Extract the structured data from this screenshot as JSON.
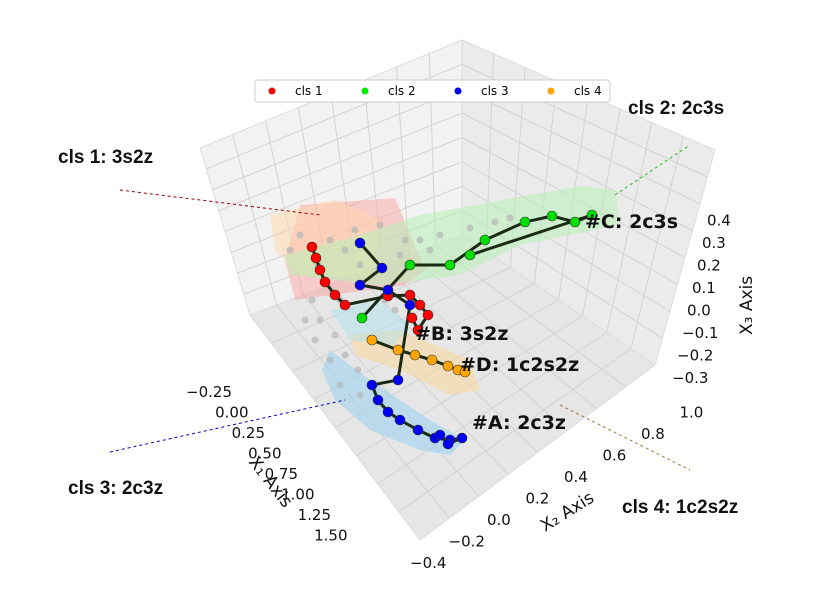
{
  "chart_data": {
    "type": "scatter3d",
    "axes": {
      "x": {
        "label": "X₁ Axis",
        "ticks": [
          "−0.25",
          "0.00",
          "0.25",
          "0.50",
          "0.75",
          "1.00",
          "1.25",
          "1.50"
        ],
        "range": [
          -0.4,
          1.6
        ]
      },
      "y": {
        "label": "X₂ Axis",
        "ticks": [
          "−0.4",
          "−0.2",
          "0.0",
          "0.2",
          "0.4",
          "0.6",
          "0.8",
          "1.0"
        ],
        "range": [
          -0.45,
          1.05
        ]
      },
      "z": {
        "label": "X₃ Axis",
        "ticks": [
          "−0.3",
          "−0.2",
          "−0.1",
          "0.0",
          "0.1",
          "0.2",
          "0.3",
          "0.4"
        ],
        "range": [
          -0.35,
          0.45
        ]
      }
    },
    "grid": true,
    "legend": {
      "placement": "top-center",
      "entries": [
        "cls 1",
        "cls 2",
        "cls 3",
        "cls 4"
      ]
    },
    "series": [
      {
        "name": "cls 1",
        "color": "#ff0000",
        "points": [
          [
            0.05,
            0.0,
            0.22
          ],
          [
            0.08,
            0.02,
            0.18
          ],
          [
            0.1,
            0.04,
            0.14
          ],
          [
            0.12,
            0.06,
            0.1
          ],
          [
            0.18,
            0.12,
            0.03
          ],
          [
            0.25,
            0.2,
            -0.02
          ],
          [
            0.35,
            0.3,
            0.0
          ],
          [
            0.4,
            0.35,
            0.03
          ],
          [
            0.45,
            0.4,
            0.0
          ],
          [
            0.5,
            0.42,
            -0.05
          ],
          [
            0.55,
            0.45,
            -0.1
          ],
          [
            0.38,
            0.3,
            -0.08
          ]
        ]
      },
      {
        "name": "cls 2",
        "color": "#00dd00",
        "points": [
          [
            0.0,
            0.3,
            0.2
          ],
          [
            0.0,
            0.5,
            0.28
          ],
          [
            -0.1,
            0.65,
            0.3
          ],
          [
            -0.15,
            0.8,
            0.3
          ],
          [
            -0.2,
            0.9,
            0.3
          ],
          [
            -0.25,
            1.0,
            0.32
          ],
          [
            -0.28,
            1.02,
            0.3
          ],
          [
            -0.3,
            1.05,
            0.26
          ],
          [
            0.05,
            0.25,
            0.18
          ]
        ]
      },
      {
        "name": "cls 3",
        "color": "#0000ee",
        "points": [
          [
            -0.05,
            -0.1,
            0.3
          ],
          [
            -0.02,
            -0.05,
            0.22
          ],
          [
            0.0,
            0.0,
            0.15
          ],
          [
            0.25,
            0.2,
            -0.02
          ],
          [
            0.3,
            0.25,
            0.0
          ],
          [
            0.4,
            0.3,
            0.05
          ],
          [
            0.9,
            0.1,
            -0.12
          ],
          [
            0.95,
            0.1,
            -0.15
          ],
          [
            1.0,
            0.12,
            -0.2
          ],
          [
            1.05,
            0.15,
            -0.22
          ],
          [
            1.1,
            0.2,
            -0.25
          ],
          [
            1.15,
            0.3,
            -0.25
          ],
          [
            1.2,
            0.4,
            -0.22
          ],
          [
            1.2,
            0.5,
            -0.2
          ],
          [
            1.15,
            0.55,
            -0.15
          ],
          [
            1.1,
            0.58,
            -0.12
          ]
        ]
      },
      {
        "name": "cls 4",
        "color": "#ffa500",
        "points": [
          [
            0.55,
            0.1,
            -0.05
          ],
          [
            0.6,
            0.2,
            -0.08
          ],
          [
            0.65,
            0.3,
            -0.1
          ],
          [
            0.7,
            0.4,
            -0.12
          ],
          [
            0.75,
            0.5,
            -0.14
          ],
          [
            0.8,
            0.55,
            -0.15
          ],
          [
            0.85,
            0.6,
            -0.18
          ]
        ]
      }
    ],
    "annotations": [
      "#A: 2c3z",
      "#B: 3s2z",
      "#C: 2c3s",
      "#D: 1c2s2z"
    ]
  },
  "callouts": {
    "cls1": "cls 1: 3s2z",
    "cls2": "cls 2: 2c3s",
    "cls3": "cls 3: 2c3z",
    "cls4": "cls 4: 1c2s2z"
  }
}
